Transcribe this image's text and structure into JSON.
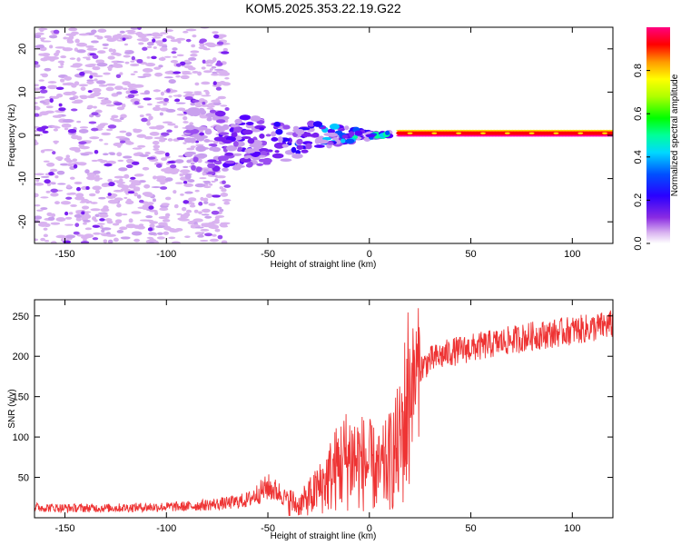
{
  "title": "KOM5.2025.353.22.19.G22",
  "chart_data": [
    {
      "type": "heatmap",
      "xlabel": "Height of straight line (km)",
      "ylabel": "Frequency (Hz)",
      "xlim": [
        -165,
        120
      ],
      "ylim": [
        -25,
        25
      ],
      "xticks": [
        -150,
        -100,
        -50,
        0,
        50,
        100
      ],
      "yticks": [
        -20,
        -10,
        0,
        10,
        20
      ],
      "colorbar": {
        "label": "Normalized spectral amplitude",
        "range": [
          0,
          1
        ],
        "ticks": [
          "0.0",
          "0.2",
          "0.4",
          "0.6",
          "0.8"
        ],
        "colormap": "rainbow (purple to red)"
      },
      "description_values": {
        "signal_frequency_hz": 0.5,
        "coherent_from_km": 15
      }
    },
    {
      "type": "line",
      "xlabel": "Height of straight line (km)",
      "ylabel": "SNR (v/v)",
      "xlim": [
        -165,
        120
      ],
      "ylim": [
        0,
        270
      ],
      "xticks": [
        -150,
        -100,
        -50,
        0,
        50,
        100
      ],
      "yticks": [
        50,
        100,
        150,
        200,
        250
      ],
      "series_color": "#ee3333",
      "series": [
        {
          "name": "SNR",
          "x": [
            -165,
            -150,
            -130,
            -110,
            -90,
            -70,
            -60,
            -55,
            -50,
            -45,
            -40,
            -35,
            -30,
            -25,
            -20,
            -15,
            -10,
            -5,
            0,
            5,
            10,
            15,
            18,
            20,
            25,
            30,
            40,
            50,
            60,
            70,
            80,
            90,
            100,
            110,
            120
          ],
          "y": [
            13,
            12,
            12,
            13,
            14,
            18,
            22,
            30,
            38,
            32,
            22,
            15,
            25,
            35,
            50,
            65,
            75,
            70,
            65,
            55,
            70,
            90,
            130,
            160,
            185,
            195,
            205,
            210,
            215,
            220,
            225,
            228,
            232,
            235,
            240
          ]
        }
      ]
    }
  ]
}
